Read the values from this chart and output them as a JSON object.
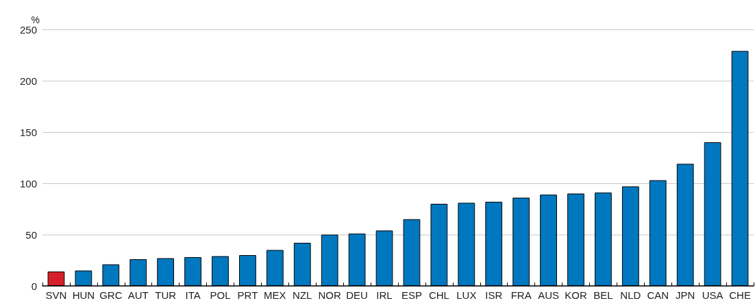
{
  "chart_data": {
    "type": "bar",
    "ylabel": "%",
    "categories": [
      "SVN",
      "HUN",
      "GRC",
      "AUT",
      "TUR",
      "ITA",
      "POL",
      "PRT",
      "MEX",
      "NZL",
      "NOR",
      "DEU",
      "IRL",
      "ESP",
      "CHL",
      "LUX",
      "ISR",
      "FRA",
      "AUS",
      "KOR",
      "BEL",
      "NLD",
      "CAN",
      "JPN",
      "USA",
      "CHE"
    ],
    "values": [
      14,
      15,
      21,
      26,
      27,
      28,
      29,
      30,
      35,
      42,
      50,
      51,
      54,
      65,
      80,
      81,
      82,
      86,
      89,
      90,
      91,
      97,
      103,
      119,
      140,
      229
    ],
    "colors": [
      "#d7212a",
      "#0078c0",
      "#0078c0",
      "#0078c0",
      "#0078c0",
      "#0078c0",
      "#0078c0",
      "#0078c0",
      "#0078c0",
      "#0078c0",
      "#0078c0",
      "#0078c0",
      "#0078c0",
      "#0078c0",
      "#0078c0",
      "#0078c0",
      "#0078c0",
      "#0078c0",
      "#0078c0",
      "#0078c0",
      "#0078c0",
      "#0078c0",
      "#0078c0",
      "#0078c0",
      "#0078c0",
      "#0078c0"
    ],
    "ylim": [
      0,
      250
    ],
    "yticks": [
      0,
      50,
      100,
      150,
      200,
      250
    ],
    "grid": "y"
  }
}
